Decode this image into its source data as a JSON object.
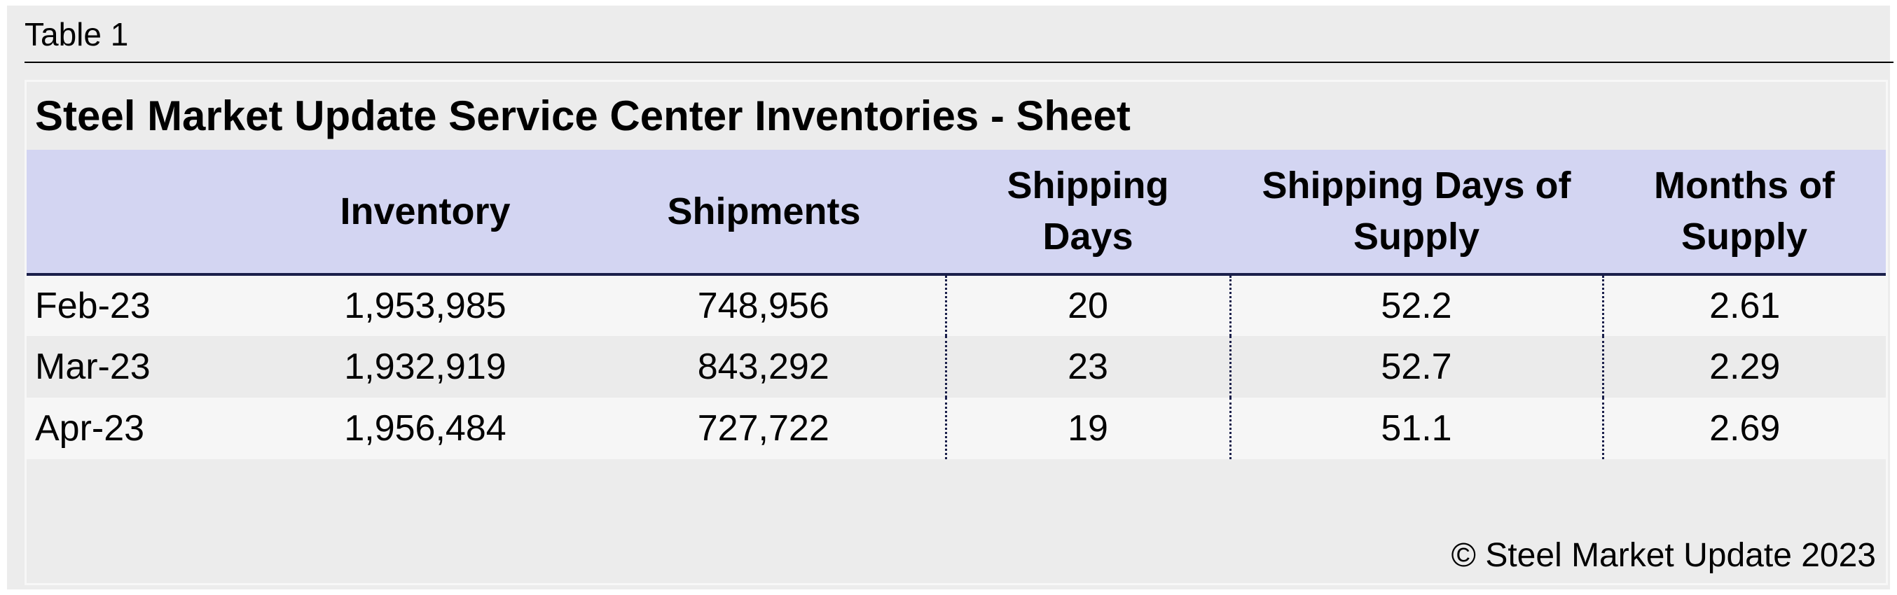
{
  "label": "Table 1",
  "title": "Steel Market Update Service Center Inventories - Sheet",
  "table": {
    "columns": [
      "Inventory",
      "Shipments",
      "Shipping Days",
      "Shipping Days of Supply",
      "Months of Supply"
    ],
    "rows": [
      [
        "Feb-23",
        "1,953,985",
        "748,956",
        "20",
        "52.2",
        "2.61"
      ],
      [
        "Mar-23",
        "1,932,919",
        "843,292",
        "23",
        "52.7",
        "2.29"
      ],
      [
        "Apr-23",
        "1,956,484",
        "727,722",
        "19",
        "51.1",
        "2.69"
      ]
    ]
  },
  "footer": "© Steel Market Update 2023"
}
